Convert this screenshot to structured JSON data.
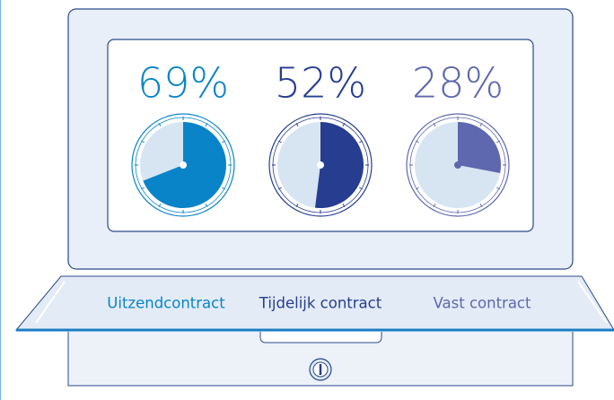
{
  "chart_data": {
    "type": "pie",
    "categories": [
      "Uitzendcontract",
      "Tijdelijk contract",
      "Vast contract"
    ],
    "values": [
      69,
      52,
      28
    ],
    "value_labels": [
      "69%",
      "52%",
      "28%"
    ],
    "colors": [
      "#0a84c8",
      "#263d90",
      "#5d68ae"
    ]
  }
}
